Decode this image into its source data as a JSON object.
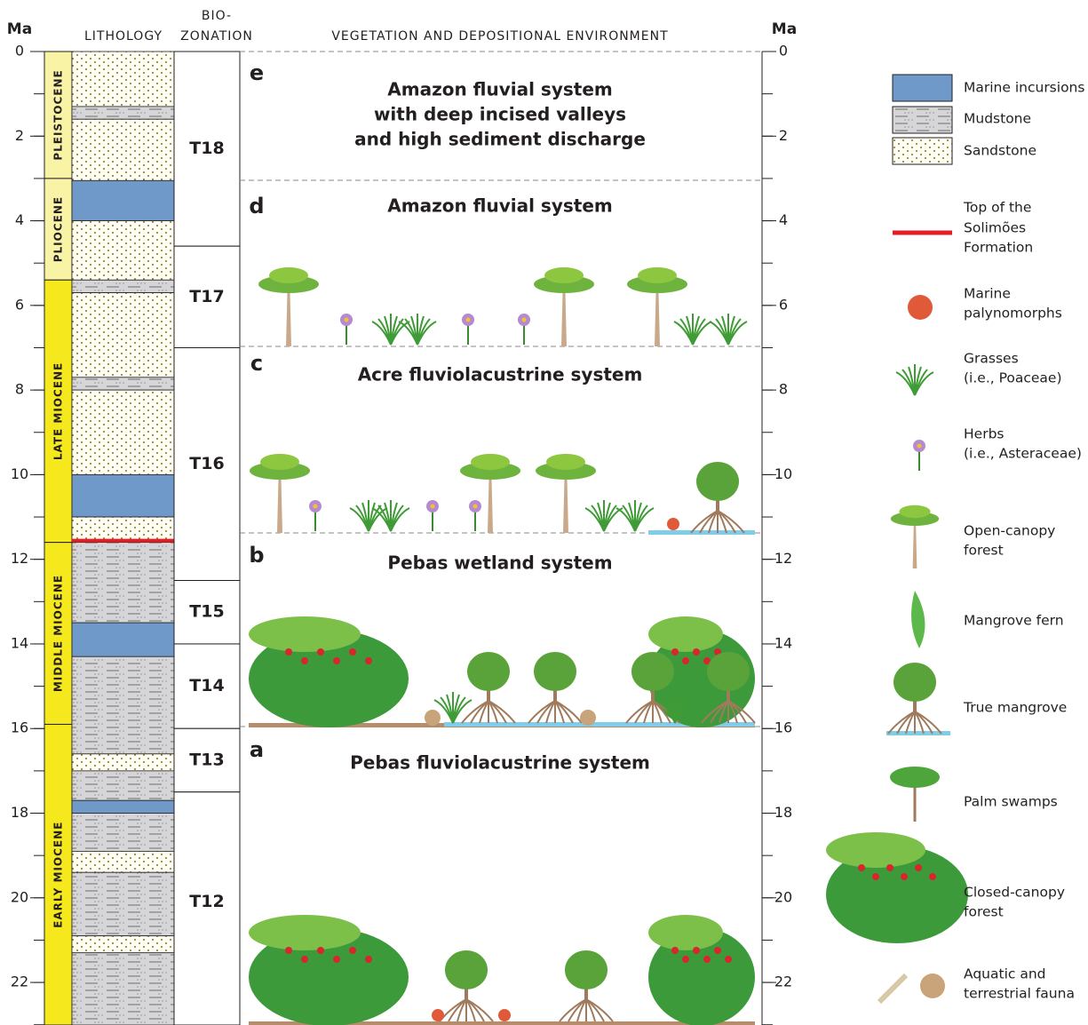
{
  "header": {
    "age_left": "Ma",
    "lithology": "LITHOLOGY",
    "biozonation": [
      "BIO-",
      "ZONATION"
    ],
    "vegetation": "VEGETATION AND DEPOSITIONAL ENVIRONMENT",
    "age_right": "Ma"
  },
  "axis": {
    "ticks": [
      0,
      2,
      4,
      6,
      8,
      10,
      12,
      14,
      16,
      18,
      20,
      22
    ]
  },
  "epochs": [
    "PLEISTOCENE",
    "PLIOCENE",
    "LATE MIOCENE",
    "MIDDLE MIOCENE",
    "EARLY MIOCENE"
  ],
  "biozones": [
    "T18",
    "T17",
    "T16",
    "T15",
    "T14",
    "T13",
    "T12"
  ],
  "panels": [
    {
      "letter": "e",
      "title": [
        "Amazon fluvial system",
        "with deep incised valleys",
        "and high sediment discharge"
      ]
    },
    {
      "letter": "d",
      "title": [
        "Amazon fluvial system"
      ]
    },
    {
      "letter": "c",
      "title": [
        "Acre fluviolacustrine system"
      ]
    },
    {
      "letter": "b",
      "title": [
        "Pebas wetland system"
      ]
    },
    {
      "letter": "a",
      "title": [
        "Pebas fluviolacustrine system"
      ]
    }
  ],
  "legend": [
    {
      "label": [
        "Marine incursions"
      ]
    },
    {
      "label": [
        "Mudstone"
      ]
    },
    {
      "label": [
        "Sandstone"
      ]
    },
    {
      "label": [
        "Top of  the",
        "Solimões",
        "Formation"
      ]
    },
    {
      "label": [
        "Marine",
        "palynomorphs"
      ]
    },
    {
      "label": [
        "Grasses",
        "(i.e., Poaceae)"
      ]
    },
    {
      "label": [
        "Herbs",
        "(i.e., Asteraceae)"
      ]
    },
    {
      "label": [
        "Open-canopy",
        "forest"
      ]
    },
    {
      "label": [
        "Mangrove fern"
      ]
    },
    {
      "label": [
        "True mangrove"
      ]
    },
    {
      "label": [
        "Palm swamps"
      ]
    },
    {
      "label": [
        "Closed-canopy",
        "forest"
      ]
    },
    {
      "label": [
        "Aquatic and",
        "terrestrial fauna"
      ]
    }
  ]
}
